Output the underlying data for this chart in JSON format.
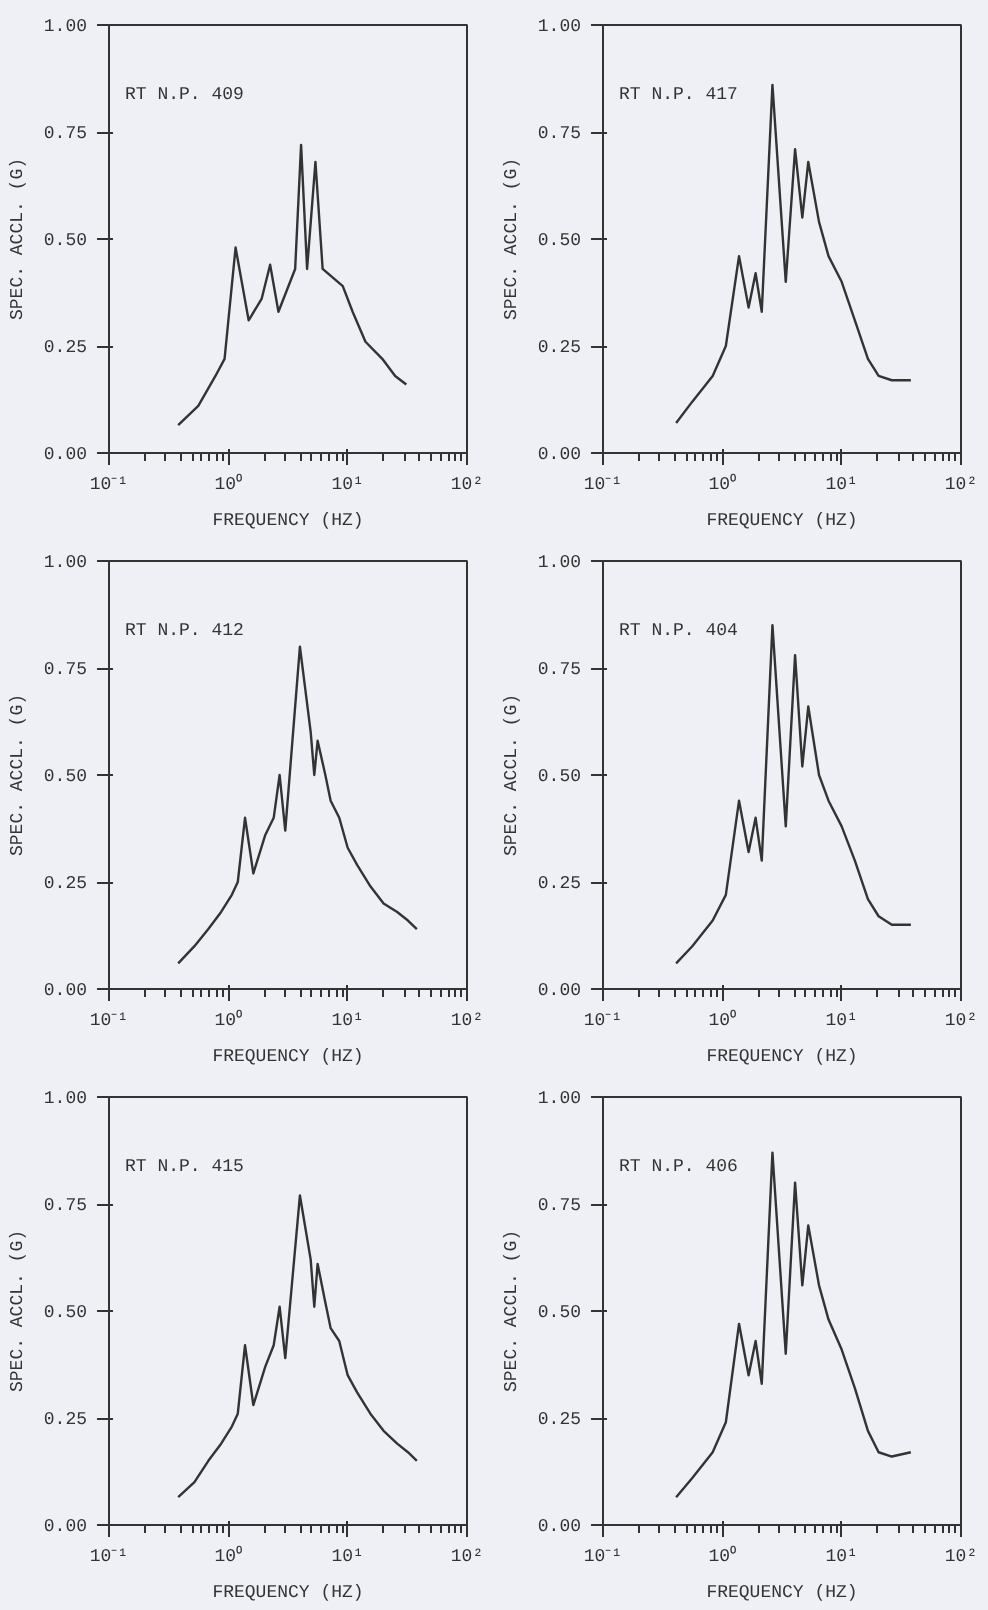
{
  "chart_data": [
    {
      "type": "line",
      "title": "RT N.P. 409",
      "xlabel": "FREQUENCY (HZ)",
      "ylabel": "SPEC. ACCL. (G)",
      "log": "x",
      "grid": false,
      "line_style": "solid",
      "xlim": [
        0.1,
        100
      ],
      "ylim": [
        0,
        1
      ],
      "xticks": [
        {
          "value": 0.1,
          "label": "10⁻¹"
        },
        {
          "value": 1,
          "label": "10⁰"
        },
        {
          "value": 10,
          "label": "10¹"
        },
        {
          "value": 100,
          "label": "10²"
        }
      ],
      "yticks": [
        {
          "value": 0,
          "label": "0.00"
        },
        {
          "value": 0.25,
          "label": "0.25"
        },
        {
          "value": 0.5,
          "label": "0.50"
        },
        {
          "value": 0.75,
          "label": "0.75"
        },
        {
          "value": 1,
          "label": "1.00"
        }
      ],
      "x": [
        0.38,
        0.56,
        0.78,
        0.93,
        1.15,
        1.48,
        1.9,
        2.24,
        2.63,
        3.63,
        4.07,
        4.57,
        5.37,
        6.17,
        9.1,
        11,
        14.1,
        19.5,
        25,
        31
      ],
      "series": [
        {
          "color": "#333333",
          "values": [
            0.065,
            0.11,
            0.18,
            0.22,
            0.48,
            0.31,
            0.36,
            0.44,
            0.33,
            0.43,
            0.72,
            0.43,
            0.68,
            0.43,
            0.39,
            0.33,
            0.26,
            0.22,
            0.18,
            0.16
          ]
        }
      ]
    },
    {
      "type": "line",
      "title": "RT N.P. 417",
      "xlabel": "FREQUENCY (HZ)",
      "ylabel": "SPEC. ACCL. (G)",
      "log": "x",
      "grid": false,
      "line_style": "solid",
      "xlim": [
        0.1,
        100
      ],
      "ylim": [
        0,
        1
      ],
      "xticks": [
        {
          "value": 0.1,
          "label": "10⁻¹"
        },
        {
          "value": 1,
          "label": "10⁰"
        },
        {
          "value": 10,
          "label": "10¹"
        },
        {
          "value": 100,
          "label": "10²"
        }
      ],
      "yticks": [
        {
          "value": 0,
          "label": "0.00"
        },
        {
          "value": 0.25,
          "label": "0.25"
        },
        {
          "value": 0.5,
          "label": "0.50"
        },
        {
          "value": 0.75,
          "label": "0.75"
        },
        {
          "value": 1,
          "label": "1.00"
        }
      ],
      "x": [
        0.41,
        0.56,
        0.83,
        1.07,
        1.38,
        1.66,
        1.9,
        2.14,
        2.63,
        3.4,
        4.07,
        4.68,
        5.25,
        6.46,
        7.76,
        10,
        12.9,
        16.6,
        20.4,
        26.3,
        38
      ],
      "series": [
        {
          "color": "#333333",
          "values": [
            0.07,
            0.12,
            0.18,
            0.25,
            0.46,
            0.34,
            0.42,
            0.33,
            0.86,
            0.4,
            0.71,
            0.55,
            0.68,
            0.54,
            0.46,
            0.4,
            0.31,
            0.22,
            0.18,
            0.17,
            0.17
          ]
        }
      ]
    },
    {
      "type": "line",
      "title": "RT N.P. 412",
      "xlabel": "FREQUENCY (HZ)",
      "ylabel": "SPEC. ACCL. (G)",
      "log": "x",
      "grid": false,
      "line_style": "solid",
      "xlim": [
        0.1,
        100
      ],
      "ylim": [
        0,
        1
      ],
      "xticks": [
        {
          "value": 0.1,
          "label": "10⁻¹"
        },
        {
          "value": 1,
          "label": "10⁰"
        },
        {
          "value": 10,
          "label": "10¹"
        },
        {
          "value": 100,
          "label": "10²"
        }
      ],
      "yticks": [
        {
          "value": 0,
          "label": "0.00"
        },
        {
          "value": 0.25,
          "label": "0.25"
        },
        {
          "value": 0.5,
          "label": "0.50"
        },
        {
          "value": 0.75,
          "label": "0.75"
        },
        {
          "value": 1,
          "label": "1.00"
        }
      ],
      "x": [
        0.38,
        0.52,
        0.68,
        0.87,
        1.07,
        1.2,
        1.38,
        1.62,
        2.04,
        2.4,
        2.69,
        3.0,
        3.98,
        4.9,
        5.25,
        5.6,
        6.5,
        7.2,
        8.5,
        10,
        12,
        15.5,
        20,
        26,
        32,
        38
      ],
      "series": [
        {
          "color": "#333333",
          "values": [
            0.06,
            0.1,
            0.14,
            0.18,
            0.22,
            0.25,
            0.4,
            0.27,
            0.36,
            0.4,
            0.5,
            0.37,
            0.8,
            0.6,
            0.5,
            0.58,
            0.5,
            0.44,
            0.4,
            0.33,
            0.29,
            0.24,
            0.2,
            0.18,
            0.16,
            0.14
          ]
        }
      ]
    },
    {
      "type": "line",
      "title": "RT N.P. 404",
      "xlabel": "FREQUENCY (HZ)",
      "ylabel": "SPEC. ACCL. (G)",
      "log": "x",
      "grid": false,
      "line_style": "solid",
      "xlim": [
        0.1,
        100
      ],
      "ylim": [
        0,
        1
      ],
      "xticks": [
        {
          "value": 0.1,
          "label": "10⁻¹"
        },
        {
          "value": 1,
          "label": "10⁰"
        },
        {
          "value": 10,
          "label": "10¹"
        },
        {
          "value": 100,
          "label": "10²"
        }
      ],
      "yticks": [
        {
          "value": 0,
          "label": "0.00"
        },
        {
          "value": 0.25,
          "label": "0.25"
        },
        {
          "value": 0.5,
          "label": "0.50"
        },
        {
          "value": 0.75,
          "label": "0.75"
        },
        {
          "value": 1,
          "label": "1.00"
        }
      ],
      "x": [
        0.41,
        0.56,
        0.83,
        1.07,
        1.38,
        1.66,
        1.9,
        2.14,
        2.63,
        3.4,
        4.07,
        4.68,
        5.25,
        6.46,
        7.76,
        10,
        12.9,
        16.6,
        20.4,
        26.3,
        38
      ],
      "series": [
        {
          "color": "#333333",
          "values": [
            0.06,
            0.1,
            0.16,
            0.22,
            0.44,
            0.32,
            0.4,
            0.3,
            0.85,
            0.38,
            0.78,
            0.52,
            0.66,
            0.5,
            0.44,
            0.38,
            0.3,
            0.21,
            0.17,
            0.15,
            0.15
          ]
        }
      ]
    },
    {
      "type": "line",
      "title": "RT N.P. 415",
      "xlabel": "FREQUENCY (HZ)",
      "ylabel": "SPEC. ACCL. (G)",
      "log": "x",
      "grid": false,
      "line_style": "solid",
      "xlim": [
        0.1,
        100
      ],
      "ylim": [
        0,
        1
      ],
      "xticks": [
        {
          "value": 0.1,
          "label": "10⁻¹"
        },
        {
          "value": 1,
          "label": "10⁰"
        },
        {
          "value": 10,
          "label": "10¹"
        },
        {
          "value": 100,
          "label": "10²"
        }
      ],
      "yticks": [
        {
          "value": 0,
          "label": "0.00"
        },
        {
          "value": 0.25,
          "label": "0.25"
        },
        {
          "value": 0.5,
          "label": "0.50"
        },
        {
          "value": 0.75,
          "label": "0.75"
        },
        {
          "value": 1,
          "label": "1.00"
        }
      ],
      "x": [
        0.38,
        0.52,
        0.68,
        0.87,
        1.07,
        1.2,
        1.38,
        1.62,
        2.04,
        2.4,
        2.69,
        3.0,
        3.98,
        4.9,
        5.25,
        5.6,
        6.5,
        7.2,
        8.5,
        10,
        12,
        15.5,
        20,
        26,
        32,
        38
      ],
      "series": [
        {
          "color": "#333333",
          "values": [
            0.065,
            0.1,
            0.15,
            0.19,
            0.23,
            0.26,
            0.42,
            0.28,
            0.37,
            0.42,
            0.51,
            0.39,
            0.77,
            0.62,
            0.51,
            0.61,
            0.52,
            0.46,
            0.43,
            0.35,
            0.31,
            0.26,
            0.22,
            0.19,
            0.17,
            0.15
          ]
        }
      ]
    },
    {
      "type": "line",
      "title": "RT N.P. 406",
      "xlabel": "FREQUENCY (HZ)",
      "ylabel": "SPEC. ACCL. (G)",
      "log": "x",
      "grid": false,
      "line_style": "solid",
      "xlim": [
        0.1,
        100
      ],
      "ylim": [
        0,
        1
      ],
      "xticks": [
        {
          "value": 0.1,
          "label": "10⁻¹"
        },
        {
          "value": 1,
          "label": "10⁰"
        },
        {
          "value": 10,
          "label": "10¹"
        },
        {
          "value": 100,
          "label": "10²"
        }
      ],
      "yticks": [
        {
          "value": 0,
          "label": "0.00"
        },
        {
          "value": 0.25,
          "label": "0.25"
        },
        {
          "value": 0.5,
          "label": "0.50"
        },
        {
          "value": 0.75,
          "label": "0.75"
        },
        {
          "value": 1,
          "label": "1.00"
        }
      ],
      "x": [
        0.41,
        0.56,
        0.83,
        1.07,
        1.38,
        1.66,
        1.9,
        2.14,
        2.63,
        3.4,
        4.07,
        4.68,
        5.25,
        6.46,
        7.76,
        10,
        12.9,
        16.6,
        20.4,
        26.3,
        38
      ],
      "series": [
        {
          "color": "#333333",
          "values": [
            0.065,
            0.11,
            0.17,
            0.24,
            0.47,
            0.35,
            0.43,
            0.33,
            0.87,
            0.4,
            0.8,
            0.56,
            0.7,
            0.56,
            0.48,
            0.41,
            0.32,
            0.22,
            0.17,
            0.16,
            0.17
          ]
        }
      ]
    }
  ]
}
